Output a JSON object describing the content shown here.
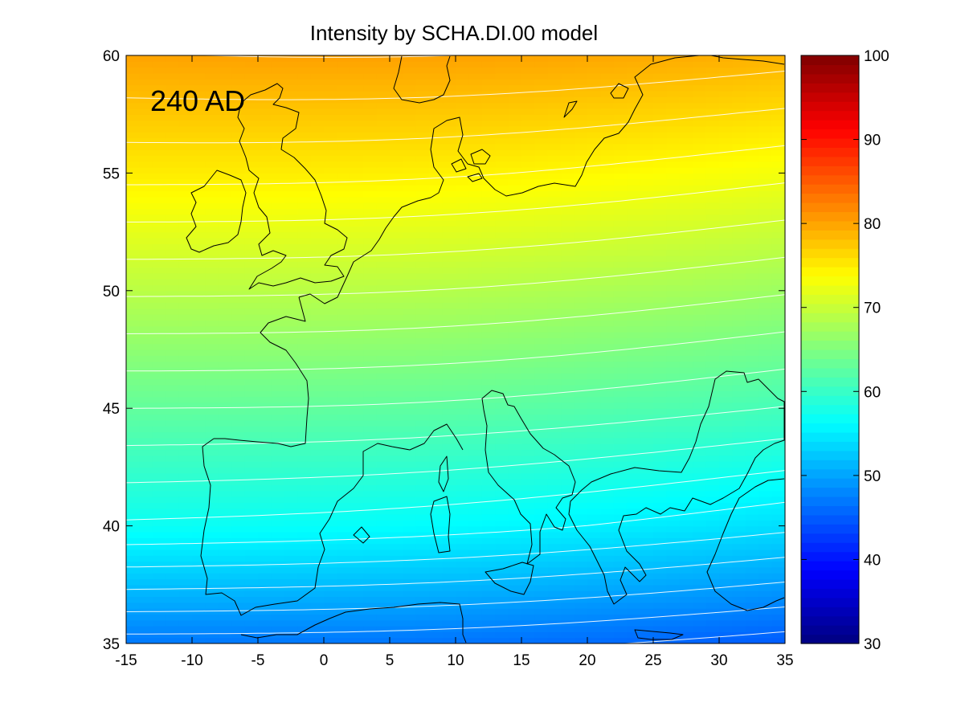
{
  "title": "Intensity by SCHA.DI.00 model",
  "annotation": "240 AD",
  "chart_data": {
    "type": "heatmap",
    "title": "Intensity by SCHA.DI.00 model",
    "xlim": [
      -15,
      35
    ],
    "ylim": [
      35,
      60
    ],
    "xticks": [
      "-15",
      "-10",
      "-5",
      "0",
      "5",
      "10",
      "15",
      "20",
      "25",
      "30",
      "35"
    ],
    "yticks": [
      "35",
      "40",
      "45",
      "50",
      "55",
      "60"
    ],
    "colorbar": {
      "colormap": "jet",
      "range": [
        30,
        100
      ],
      "ticks": [
        "30",
        "40",
        "50",
        "60",
        "70",
        "80",
        "90",
        "100"
      ]
    },
    "field_at_left_edge": [
      {
        "lat": 35,
        "value": 47
      },
      {
        "lat": 40,
        "value": 57
      },
      {
        "lat": 45,
        "value": 63
      },
      {
        "lat": 50,
        "value": 69
      },
      {
        "lat": 55,
        "value": 75
      },
      {
        "lat": 60,
        "value": 80
      }
    ],
    "field_at_right_edge": [
      {
        "lat": 35,
        "value": 45
      },
      {
        "lat": 40,
        "value": 54
      },
      {
        "lat": 45,
        "value": 61
      },
      {
        "lat": 50,
        "value": 67
      },
      {
        "lat": 55,
        "value": 73
      },
      {
        "lat": 60,
        "value": 79
      }
    ],
    "contours": true,
    "coastlines": true
  }
}
